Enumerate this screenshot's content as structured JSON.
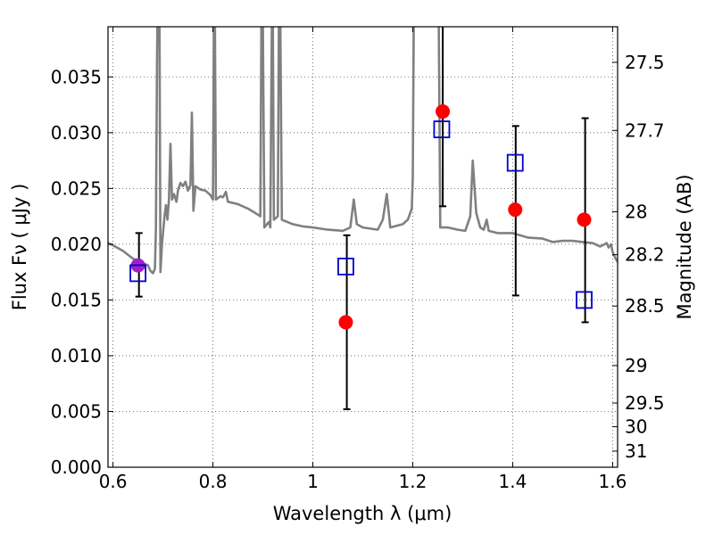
{
  "chart_data": {
    "type": "scatter",
    "xlabel": "Wavelength  λ (μm)",
    "ylabel": "Flux  Fν  ( μJy )",
    "y2label": "Magnitude (AB)",
    "xlim": [
      0.59,
      1.61
    ],
    "ylim": [
      0.0,
      0.0395
    ],
    "grid": true,
    "x_ticks": [
      {
        "value": 0.6,
        "label": "0.6"
      },
      {
        "value": 0.8,
        "label": "0.8"
      },
      {
        "value": 1.0,
        "label": "1"
      },
      {
        "value": 1.2,
        "label": "1.2"
      },
      {
        "value": 1.4,
        "label": "1.4"
      },
      {
        "value": 1.6,
        "label": "1.6"
      }
    ],
    "y_ticks": [
      {
        "value": 0.0,
        "label": "0.000"
      },
      {
        "value": 0.005,
        "label": "0.005"
      },
      {
        "value": 0.01,
        "label": "0.010"
      },
      {
        "value": 0.015,
        "label": "0.015"
      },
      {
        "value": 0.02,
        "label": "0.020"
      },
      {
        "value": 0.025,
        "label": "0.025"
      },
      {
        "value": 0.03,
        "label": "0.030"
      },
      {
        "value": 0.035,
        "label": "0.035"
      }
    ],
    "y2_ticks": [
      {
        "value": 27.5,
        "label": "27.5"
      },
      {
        "value": 27.7,
        "label": "27.7"
      },
      {
        "value": 28.0,
        "label": "28"
      },
      {
        "value": 28.2,
        "label": "28.2"
      },
      {
        "value": 28.5,
        "label": "28.5"
      },
      {
        "value": 29.0,
        "label": "29"
      },
      {
        "value": 29.5,
        "label": "29.5"
      },
      {
        "value": 30.0,
        "label": "30"
      },
      {
        "value": 31.0,
        "label": "31"
      }
    ],
    "series": [
      {
        "role": "model-spectrum",
        "type": "line",
        "color": "#808080",
        "points": [
          [
            0.59,
            0.0201
          ],
          [
            0.6,
            0.0199
          ],
          [
            0.62,
            0.0194
          ],
          [
            0.64,
            0.0187
          ],
          [
            0.66,
            0.0183
          ],
          [
            0.67,
            0.0181
          ],
          [
            0.675,
            0.0176
          ],
          [
            0.68,
            0.0174
          ],
          [
            0.684,
            0.0178
          ],
          [
            0.686,
            0.0215
          ],
          [
            0.688,
            0.036
          ],
          [
            0.689,
            0.04
          ],
          [
            0.693,
            0.04
          ],
          [
            0.695,
            0.0175
          ],
          [
            0.698,
            0.02
          ],
          [
            0.703,
            0.0225
          ],
          [
            0.706,
            0.0235
          ],
          [
            0.709,
            0.0222
          ],
          [
            0.712,
            0.024
          ],
          [
            0.715,
            0.029
          ],
          [
            0.718,
            0.024
          ],
          [
            0.722,
            0.0245
          ],
          [
            0.727,
            0.0238
          ],
          [
            0.73,
            0.0248
          ],
          [
            0.735,
            0.0255
          ],
          [
            0.74,
            0.0252
          ],
          [
            0.745,
            0.0256
          ],
          [
            0.75,
            0.0248
          ],
          [
            0.755,
            0.0253
          ],
          [
            0.758,
            0.0318
          ],
          [
            0.761,
            0.023
          ],
          [
            0.765,
            0.0252
          ],
          [
            0.775,
            0.0249
          ],
          [
            0.785,
            0.0248
          ],
          [
            0.795,
            0.0244
          ],
          [
            0.8,
            0.024
          ],
          [
            0.802,
            0.04
          ],
          [
            0.804,
            0.04
          ],
          [
            0.806,
            0.024
          ],
          [
            0.815,
            0.0243
          ],
          [
            0.82,
            0.0242
          ],
          [
            0.826,
            0.0247
          ],
          [
            0.83,
            0.0238
          ],
          [
            0.85,
            0.0236
          ],
          [
            0.87,
            0.0232
          ],
          [
            0.885,
            0.0228
          ],
          [
            0.895,
            0.0225
          ],
          [
            0.897,
            0.04
          ],
          [
            0.9,
            0.04
          ],
          [
            0.903,
            0.0215
          ],
          [
            0.912,
            0.022
          ],
          [
            0.915,
            0.0215
          ],
          [
            0.918,
            0.04
          ],
          [
            0.92,
            0.04
          ],
          [
            0.922,
            0.0222
          ],
          [
            0.93,
            0.0225
          ],
          [
            0.932,
            0.04
          ],
          [
            0.935,
            0.04
          ],
          [
            0.938,
            0.0222
          ],
          [
            0.96,
            0.0218
          ],
          [
            0.98,
            0.0216
          ],
          [
            1.0,
            0.0215
          ],
          [
            1.03,
            0.0213
          ],
          [
            1.06,
            0.0212
          ],
          [
            1.075,
            0.0215
          ],
          [
            1.082,
            0.024
          ],
          [
            1.088,
            0.0218
          ],
          [
            1.1,
            0.0215
          ],
          [
            1.13,
            0.0213
          ],
          [
            1.14,
            0.0222
          ],
          [
            1.148,
            0.0245
          ],
          [
            1.155,
            0.0215
          ],
          [
            1.18,
            0.0218
          ],
          [
            1.19,
            0.0222
          ],
          [
            1.198,
            0.0232
          ],
          [
            1.2,
            0.026
          ],
          [
            1.202,
            0.04
          ],
          [
            1.252,
            0.04
          ],
          [
            1.255,
            0.0215
          ],
          [
            1.27,
            0.0215
          ],
          [
            1.29,
            0.0213
          ],
          [
            1.305,
            0.0212
          ],
          [
            1.315,
            0.0225
          ],
          [
            1.32,
            0.0275
          ],
          [
            1.327,
            0.0228
          ],
          [
            1.335,
            0.0215
          ],
          [
            1.342,
            0.0213
          ],
          [
            1.348,
            0.0222
          ],
          [
            1.352,
            0.0212
          ],
          [
            1.37,
            0.021
          ],
          [
            1.4,
            0.021
          ],
          [
            1.43,
            0.0206
          ],
          [
            1.46,
            0.0205
          ],
          [
            1.48,
            0.0202
          ],
          [
            1.5,
            0.0203
          ],
          [
            1.52,
            0.0203
          ],
          [
            1.54,
            0.0202
          ],
          [
            1.56,
            0.0201
          ],
          [
            1.575,
            0.0198
          ],
          [
            1.58,
            0.0199
          ],
          [
            1.588,
            0.0201
          ],
          [
            1.592,
            0.0197
          ],
          [
            1.597,
            0.02
          ],
          [
            1.6,
            0.0193
          ],
          [
            1.605,
            0.0188
          ],
          [
            1.61,
            0.0184
          ]
        ]
      },
      {
        "role": "observed-flux",
        "type": "scatter",
        "marker": "circle",
        "color": "#ff0000",
        "points": [
          {
            "x": 1.066,
            "y": 0.013
          },
          {
            "x": 1.26,
            "y": 0.0319
          },
          {
            "x": 1.405,
            "y": 0.0231
          },
          {
            "x": 1.543,
            "y": 0.0222
          }
        ]
      },
      {
        "role": "observed-flux-highlight",
        "type": "scatter",
        "marker": "circle",
        "color": "#a020c8",
        "points": [
          {
            "x": 0.65,
            "y": 0.0181
          }
        ]
      },
      {
        "role": "model-flux",
        "type": "scatter",
        "marker": "square-open",
        "color": "#0000cc",
        "points": [
          {
            "x": 0.65,
            "y": 0.0174
          },
          {
            "x": 1.066,
            "y": 0.018
          },
          {
            "x": 1.258,
            "y": 0.0303
          },
          {
            "x": 1.405,
            "y": 0.0273
          },
          {
            "x": 1.543,
            "y": 0.015
          }
        ]
      },
      {
        "role": "error-bars",
        "type": "errorbar",
        "color": "#000000",
        "bars": [
          {
            "x": 0.652,
            "y_low": 0.0153,
            "y_high": 0.021
          },
          {
            "x": 1.068,
            "y_low": 0.0052,
            "y_high": 0.0208
          },
          {
            "x": 1.26,
            "y_low": 0.0234,
            "y_high": 0.04
          },
          {
            "x": 1.406,
            "y_low": 0.0154,
            "y_high": 0.0306
          },
          {
            "x": 1.545,
            "y_low": 0.013,
            "y_high": 0.0313
          }
        ]
      }
    ]
  }
}
